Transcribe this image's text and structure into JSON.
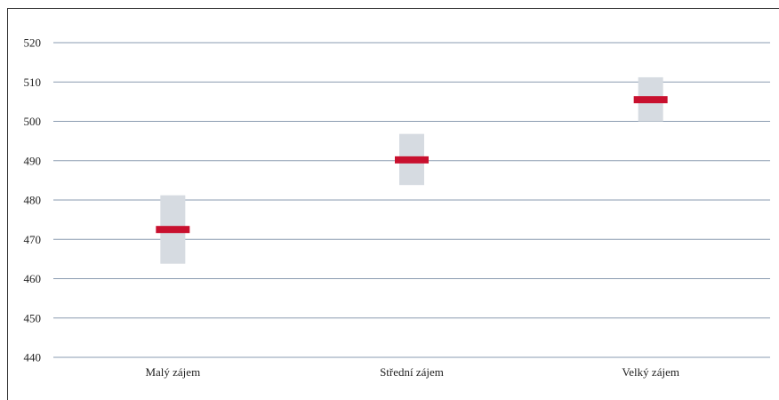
{
  "chart_data": {
    "type": "range-point",
    "title": "",
    "xlabel": "",
    "ylabel": "",
    "ylim": [
      440,
      520
    ],
    "yticks": [
      440,
      450,
      460,
      470,
      480,
      490,
      500,
      510,
      520
    ],
    "categories": [
      "Malý zájem",
      "Střední zájem",
      "Velký zájem"
    ],
    "series": [
      {
        "values": [
          472.5,
          490.2,
          505.5
        ],
        "low": [
          463.8,
          483.8,
          500.0
        ],
        "high": [
          481.2,
          496.8,
          511.2
        ]
      }
    ],
    "colors": {
      "point": "#c8102e",
      "range": "#d6dbe1",
      "grid": "#8a9bb0"
    },
    "grid": true
  }
}
